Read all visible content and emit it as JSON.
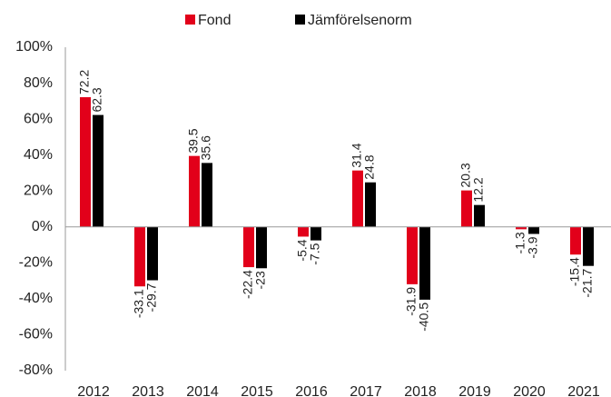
{
  "chart_data": {
    "type": "bar",
    "categories": [
      "2012",
      "2013",
      "2014",
      "2015",
      "2016",
      "2017",
      "2018",
      "2019",
      "2020",
      "2021"
    ],
    "series": [
      {
        "name": "Fond",
        "color": "#e2001a",
        "values": [
          72.2,
          -33.1,
          39.5,
          -22.4,
          -5.4,
          31.4,
          -31.9,
          20.3,
          -1.3,
          -15.4
        ]
      },
      {
        "name": "Jämförelsenorm",
        "color": "#000000",
        "values": [
          62.3,
          -29.7,
          35.6,
          -23.0,
          -7.5,
          24.8,
          -40.5,
          12.2,
          -3.9,
          -21.7
        ]
      }
    ],
    "ylim": [
      -80,
      100
    ],
    "yticks": [
      {
        "value": -80,
        "label": "-80%"
      },
      {
        "value": -60,
        "label": "-60%"
      },
      {
        "value": -40,
        "label": "-40%"
      },
      {
        "value": -20,
        "label": "-20%"
      },
      {
        "value": 0,
        "label": "0%"
      },
      {
        "value": 20,
        "label": "20%"
      },
      {
        "value": 40,
        "label": "40%"
      },
      {
        "value": 60,
        "label": "60%"
      },
      {
        "value": 80,
        "label": "80%"
      },
      {
        "value": 100,
        "label": "100%"
      }
    ],
    "legend": "top"
  }
}
